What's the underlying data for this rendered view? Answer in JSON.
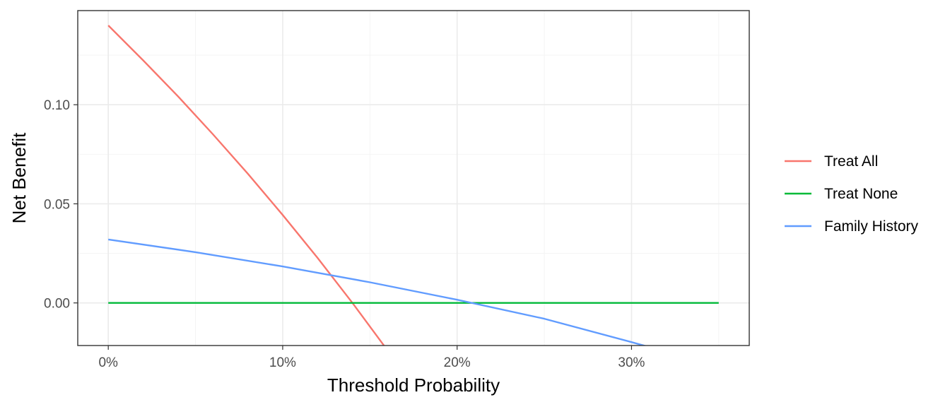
{
  "chart_data": {
    "type": "line",
    "xlabel": "Threshold Probability",
    "ylabel": "Net Benefit",
    "xlim": [
      -0.0175,
      0.3675
    ],
    "ylim": [
      -0.0215,
      0.1475
    ],
    "x_ticks": [
      {
        "value": 0.0,
        "label": "0%"
      },
      {
        "value": 0.1,
        "label": "10%"
      },
      {
        "value": 0.2,
        "label": "20%"
      },
      {
        "value": 0.3,
        "label": "30%"
      }
    ],
    "y_ticks": [
      {
        "value": 0.0,
        "label": "0.00"
      },
      {
        "value": 0.05,
        "label": "0.05"
      },
      {
        "value": 0.1,
        "label": "0.10"
      }
    ],
    "x_minor": [
      0.05,
      0.15,
      0.25,
      0.35
    ],
    "y_minor": [
      -0.025,
      0.025,
      0.075,
      0.125
    ],
    "grid": true,
    "legend_position": "right",
    "series": [
      {
        "name": "Treat All",
        "color": "#F8766D",
        "x": [
          0,
          0.02,
          0.04,
          0.06,
          0.08,
          0.1,
          0.12,
          0.14,
          0.16
        ],
        "y": [
          0.14,
          0.1224,
          0.1042,
          0.0851,
          0.0652,
          0.0444,
          0.0227,
          0.0,
          -0.0238
        ]
      },
      {
        "name": "Treat None",
        "color": "#00BA38",
        "x": [
          0,
          0.35
        ],
        "y": [
          0,
          0
        ]
      },
      {
        "name": "Family History",
        "color": "#619CFF",
        "x": [
          0,
          0.05,
          0.1,
          0.15,
          0.2,
          0.25,
          0.3,
          0.31
        ],
        "y": [
          0.032,
          0.0256,
          0.0184,
          0.0104,
          0.0016,
          -0.008,
          -0.0198,
          -0.0222
        ]
      }
    ]
  }
}
